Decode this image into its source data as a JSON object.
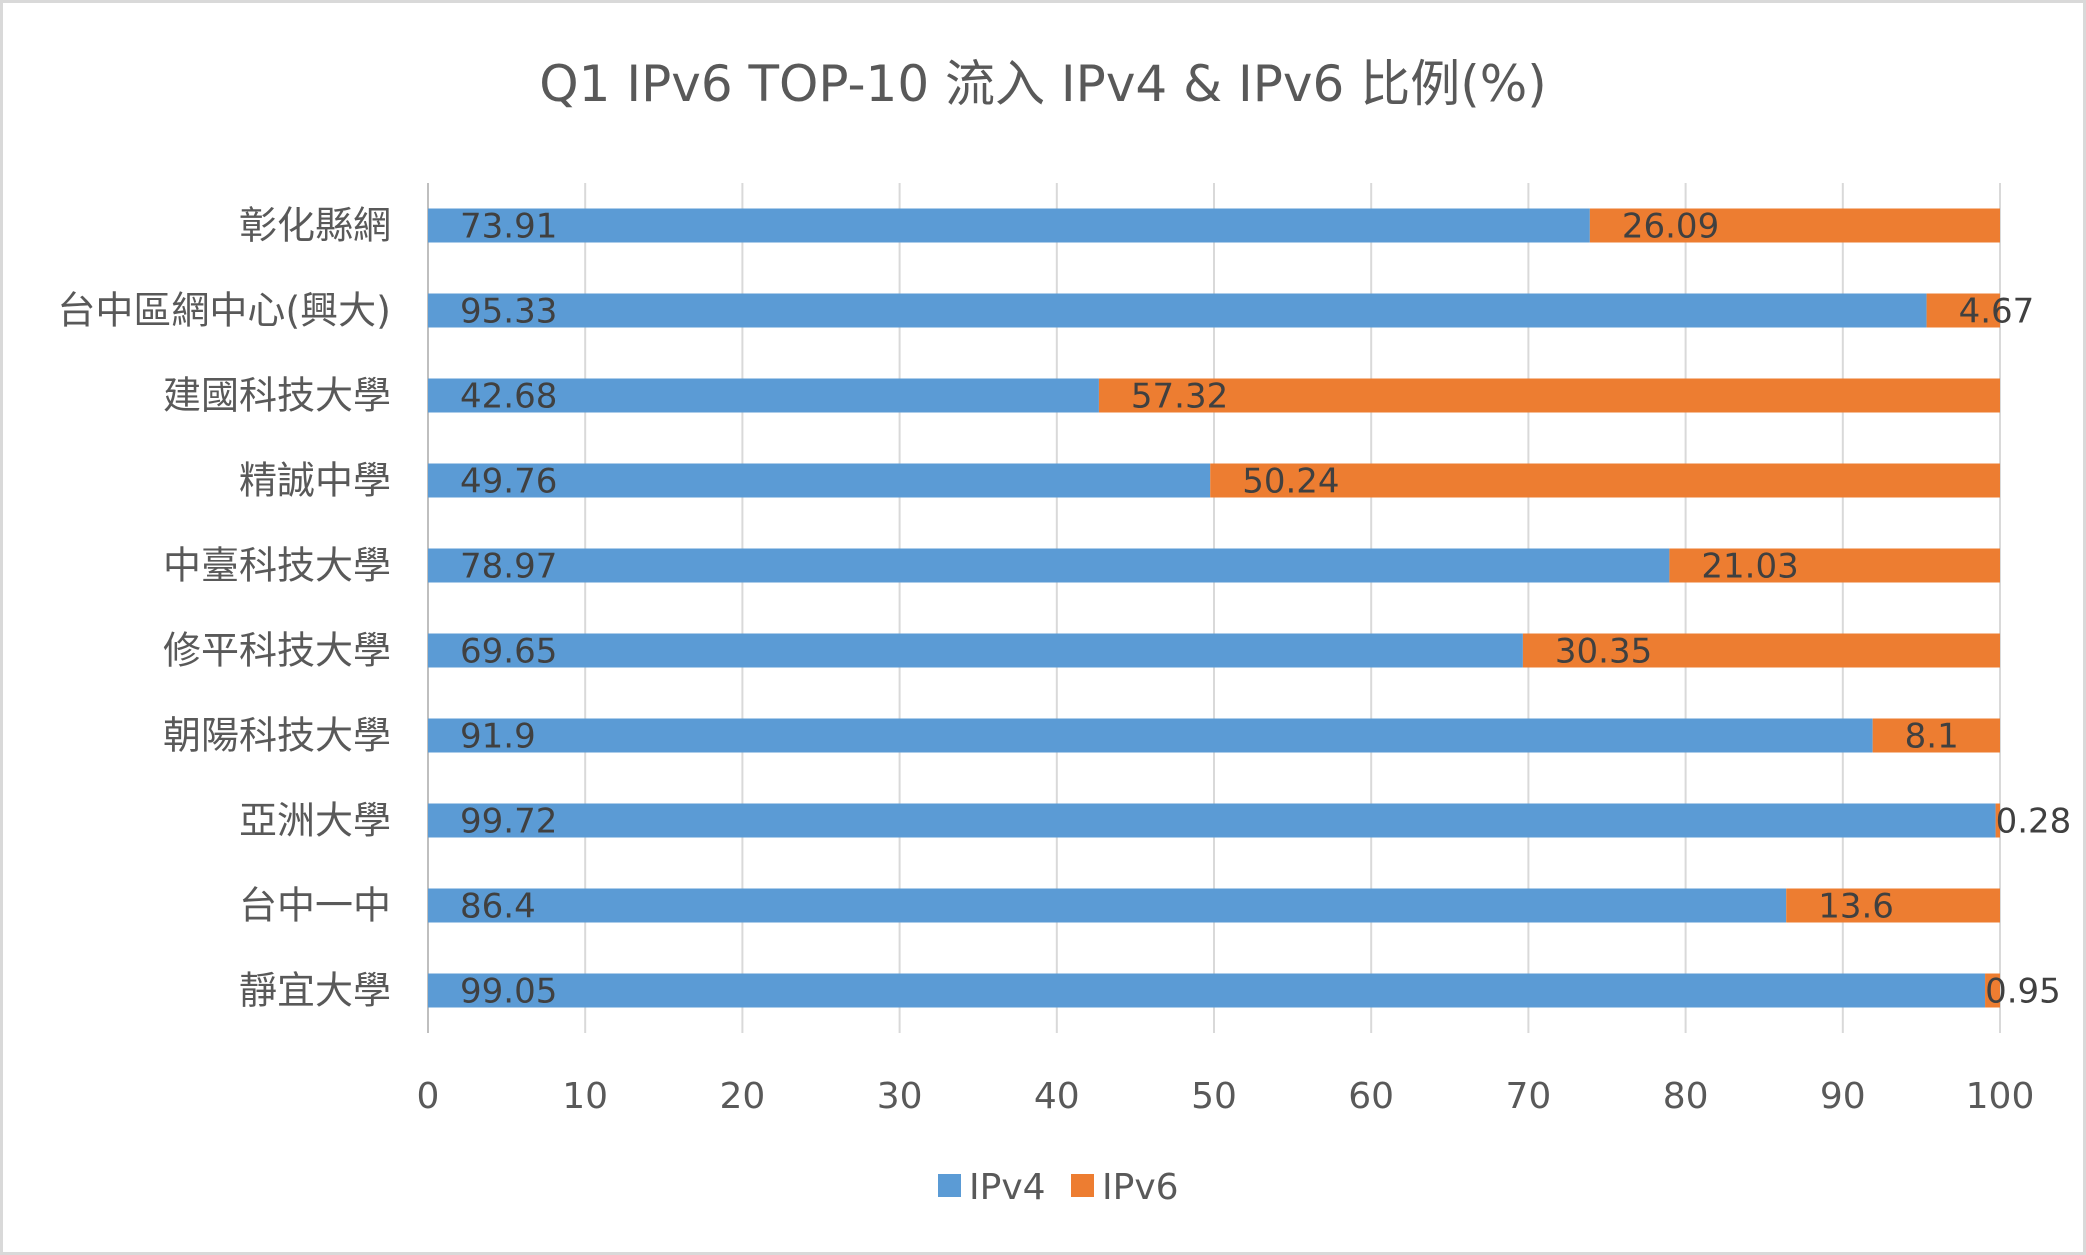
{
  "chart_data": {
    "type": "bar",
    "orientation": "horizontal",
    "stacked": true,
    "title": "Q1 IPv6 TOP-10 流入 IPv4 & IPv6 比例(%)",
    "xlabel": "",
    "ylabel": "",
    "xlim": [
      0,
      100
    ],
    "xticks": [
      0,
      10,
      20,
      30,
      40,
      50,
      60,
      70,
      80,
      90,
      100
    ],
    "grid": true,
    "legend_position": "bottom",
    "categories": [
      "彰化縣網",
      "台中區網中心(興大)",
      "建國科技大學",
      "精誠中學",
      "中臺科技大學",
      "修平科技大學",
      "朝陽科技大學",
      "亞洲大學",
      "台中一中",
      "靜宜大學"
    ],
    "series": [
      {
        "name": "IPv4",
        "color": "#5b9bd5",
        "values": [
          73.91,
          95.33,
          42.68,
          49.76,
          78.97,
          69.65,
          91.9,
          99.72,
          86.4,
          99.05
        ],
        "labels": [
          "73.91",
          "95.33",
          "42.68",
          "49.76",
          "78.97",
          "69.65",
          "91.9",
          "99.72",
          "86.4",
          "99.05"
        ]
      },
      {
        "name": "IPv6",
        "color": "#ed7d31",
        "values": [
          26.09,
          4.67,
          57.32,
          50.24,
          21.03,
          30.35,
          8.1,
          0.28,
          13.6,
          0.95
        ],
        "labels": [
          "26.09",
          "4.67",
          "57.32",
          "50.24",
          "21.03",
          "30.35",
          "8.1",
          "0.28",
          "13.6",
          "0.95"
        ]
      }
    ]
  }
}
